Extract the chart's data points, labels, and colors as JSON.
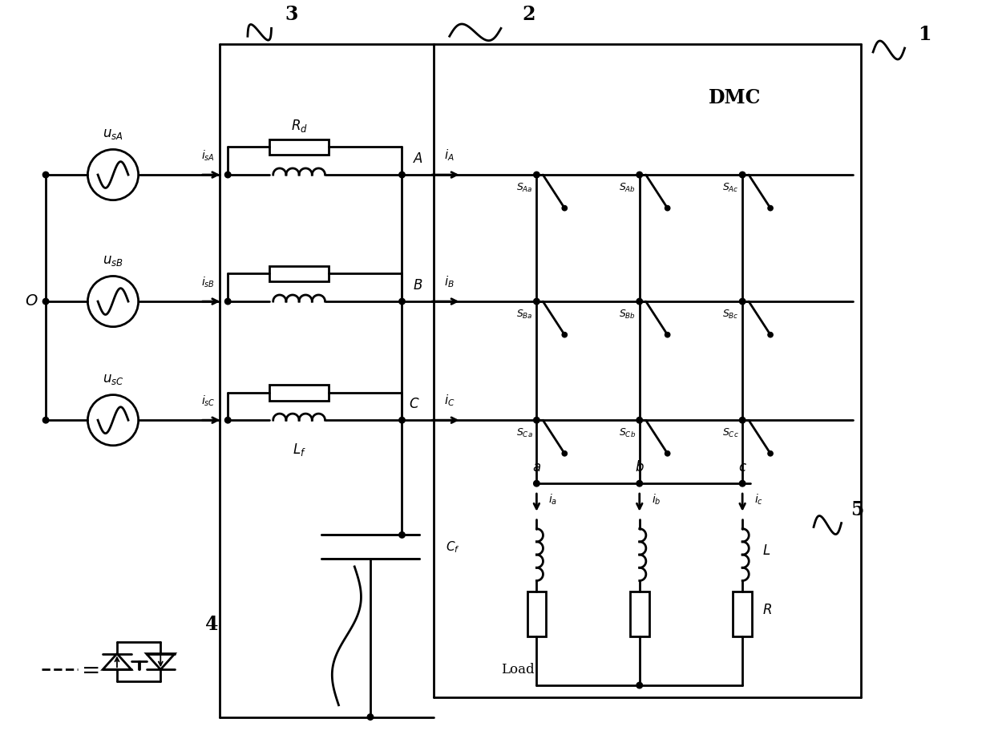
{
  "fig_width": 12.4,
  "fig_height": 9.22,
  "dpi": 100,
  "bg": "#ffffff",
  "lc": "#000000",
  "lw": 2.0
}
